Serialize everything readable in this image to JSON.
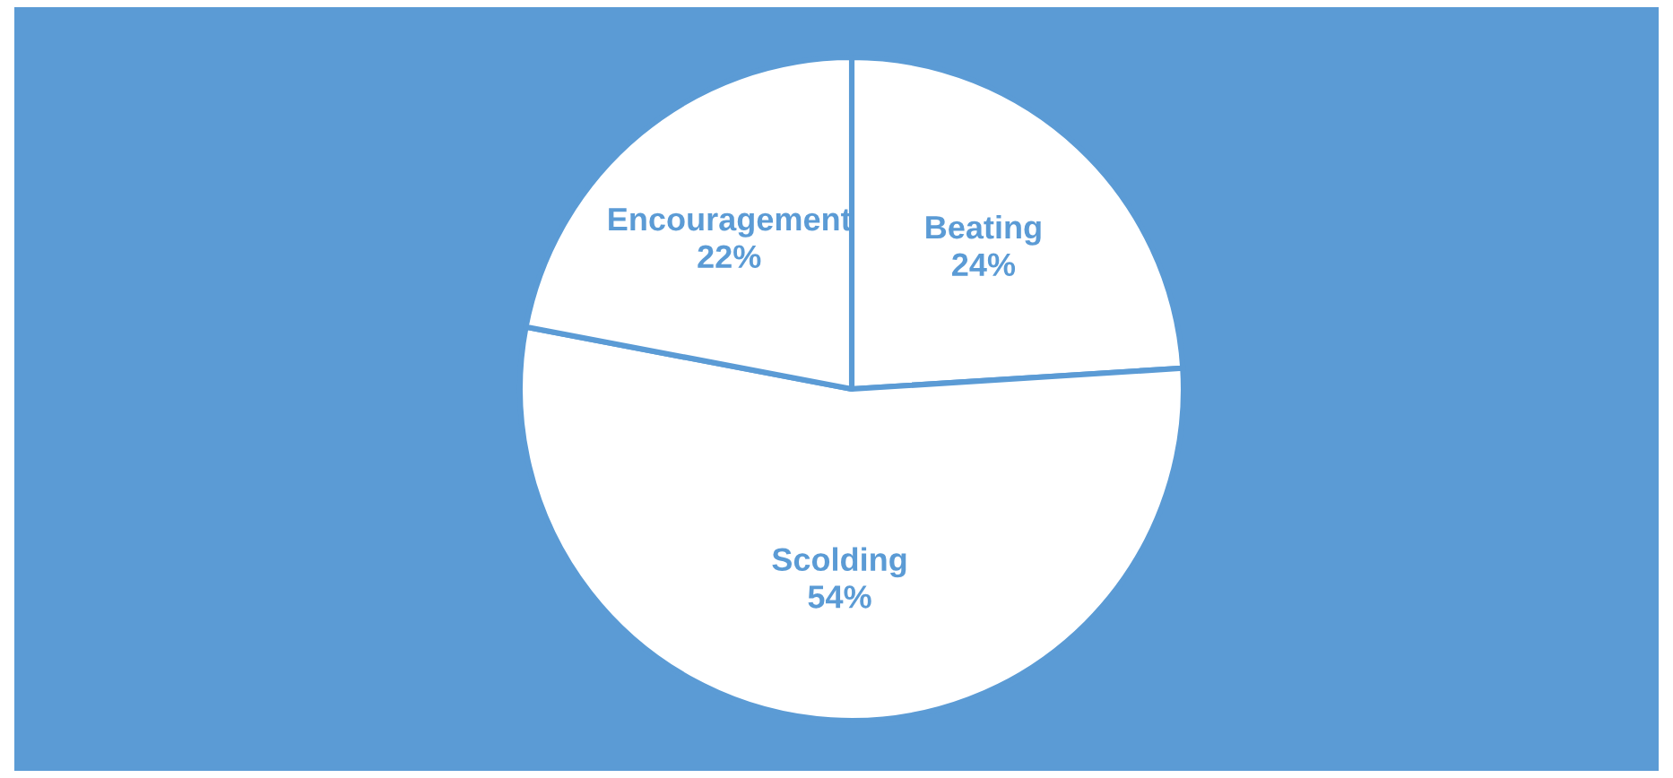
{
  "chart_data": {
    "type": "pie",
    "categories": [
      "Beating",
      "Scolding",
      "Encouragement"
    ],
    "values": [
      24,
      54,
      22
    ],
    "colors": [
      "#ffffff",
      "#ffffff",
      "#ffffff"
    ],
    "value_labels": [
      "24%",
      "54%",
      "22%"
    ],
    "legend": false
  }
}
